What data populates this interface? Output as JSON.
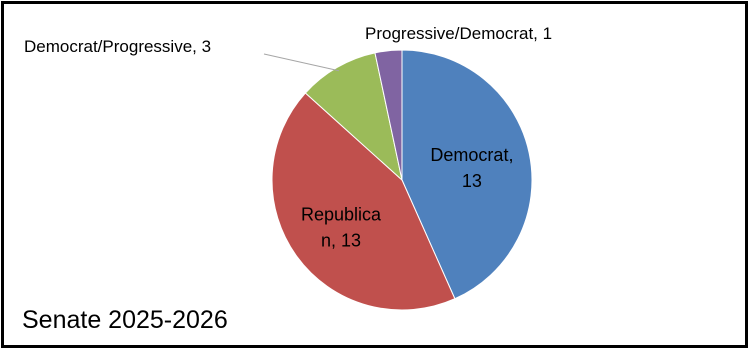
{
  "chart_data": {
    "type": "pie",
    "title": "Senate 2025-2026",
    "slices": [
      {
        "name": "Democrat",
        "value": 13,
        "color": "#4f81bd",
        "label_lines": [
          "Democrat,",
          "13"
        ]
      },
      {
        "name": "Republican",
        "value": 13,
        "color": "#c0504d",
        "label_lines": [
          "Republica",
          "n, 13"
        ]
      },
      {
        "name": "Democrat/Progressive",
        "value": 3,
        "color": "#9bbb59",
        "label_lines": [
          "Democrat/Progressive, 3"
        ]
      },
      {
        "name": "Progressive/Democrat",
        "value": 1,
        "color": "#8064a2",
        "label_lines": [
          "Progressive/Democrat, 1"
        ]
      }
    ],
    "start_angle_deg": 0,
    "direction": "clockwise",
    "legend": "none"
  }
}
